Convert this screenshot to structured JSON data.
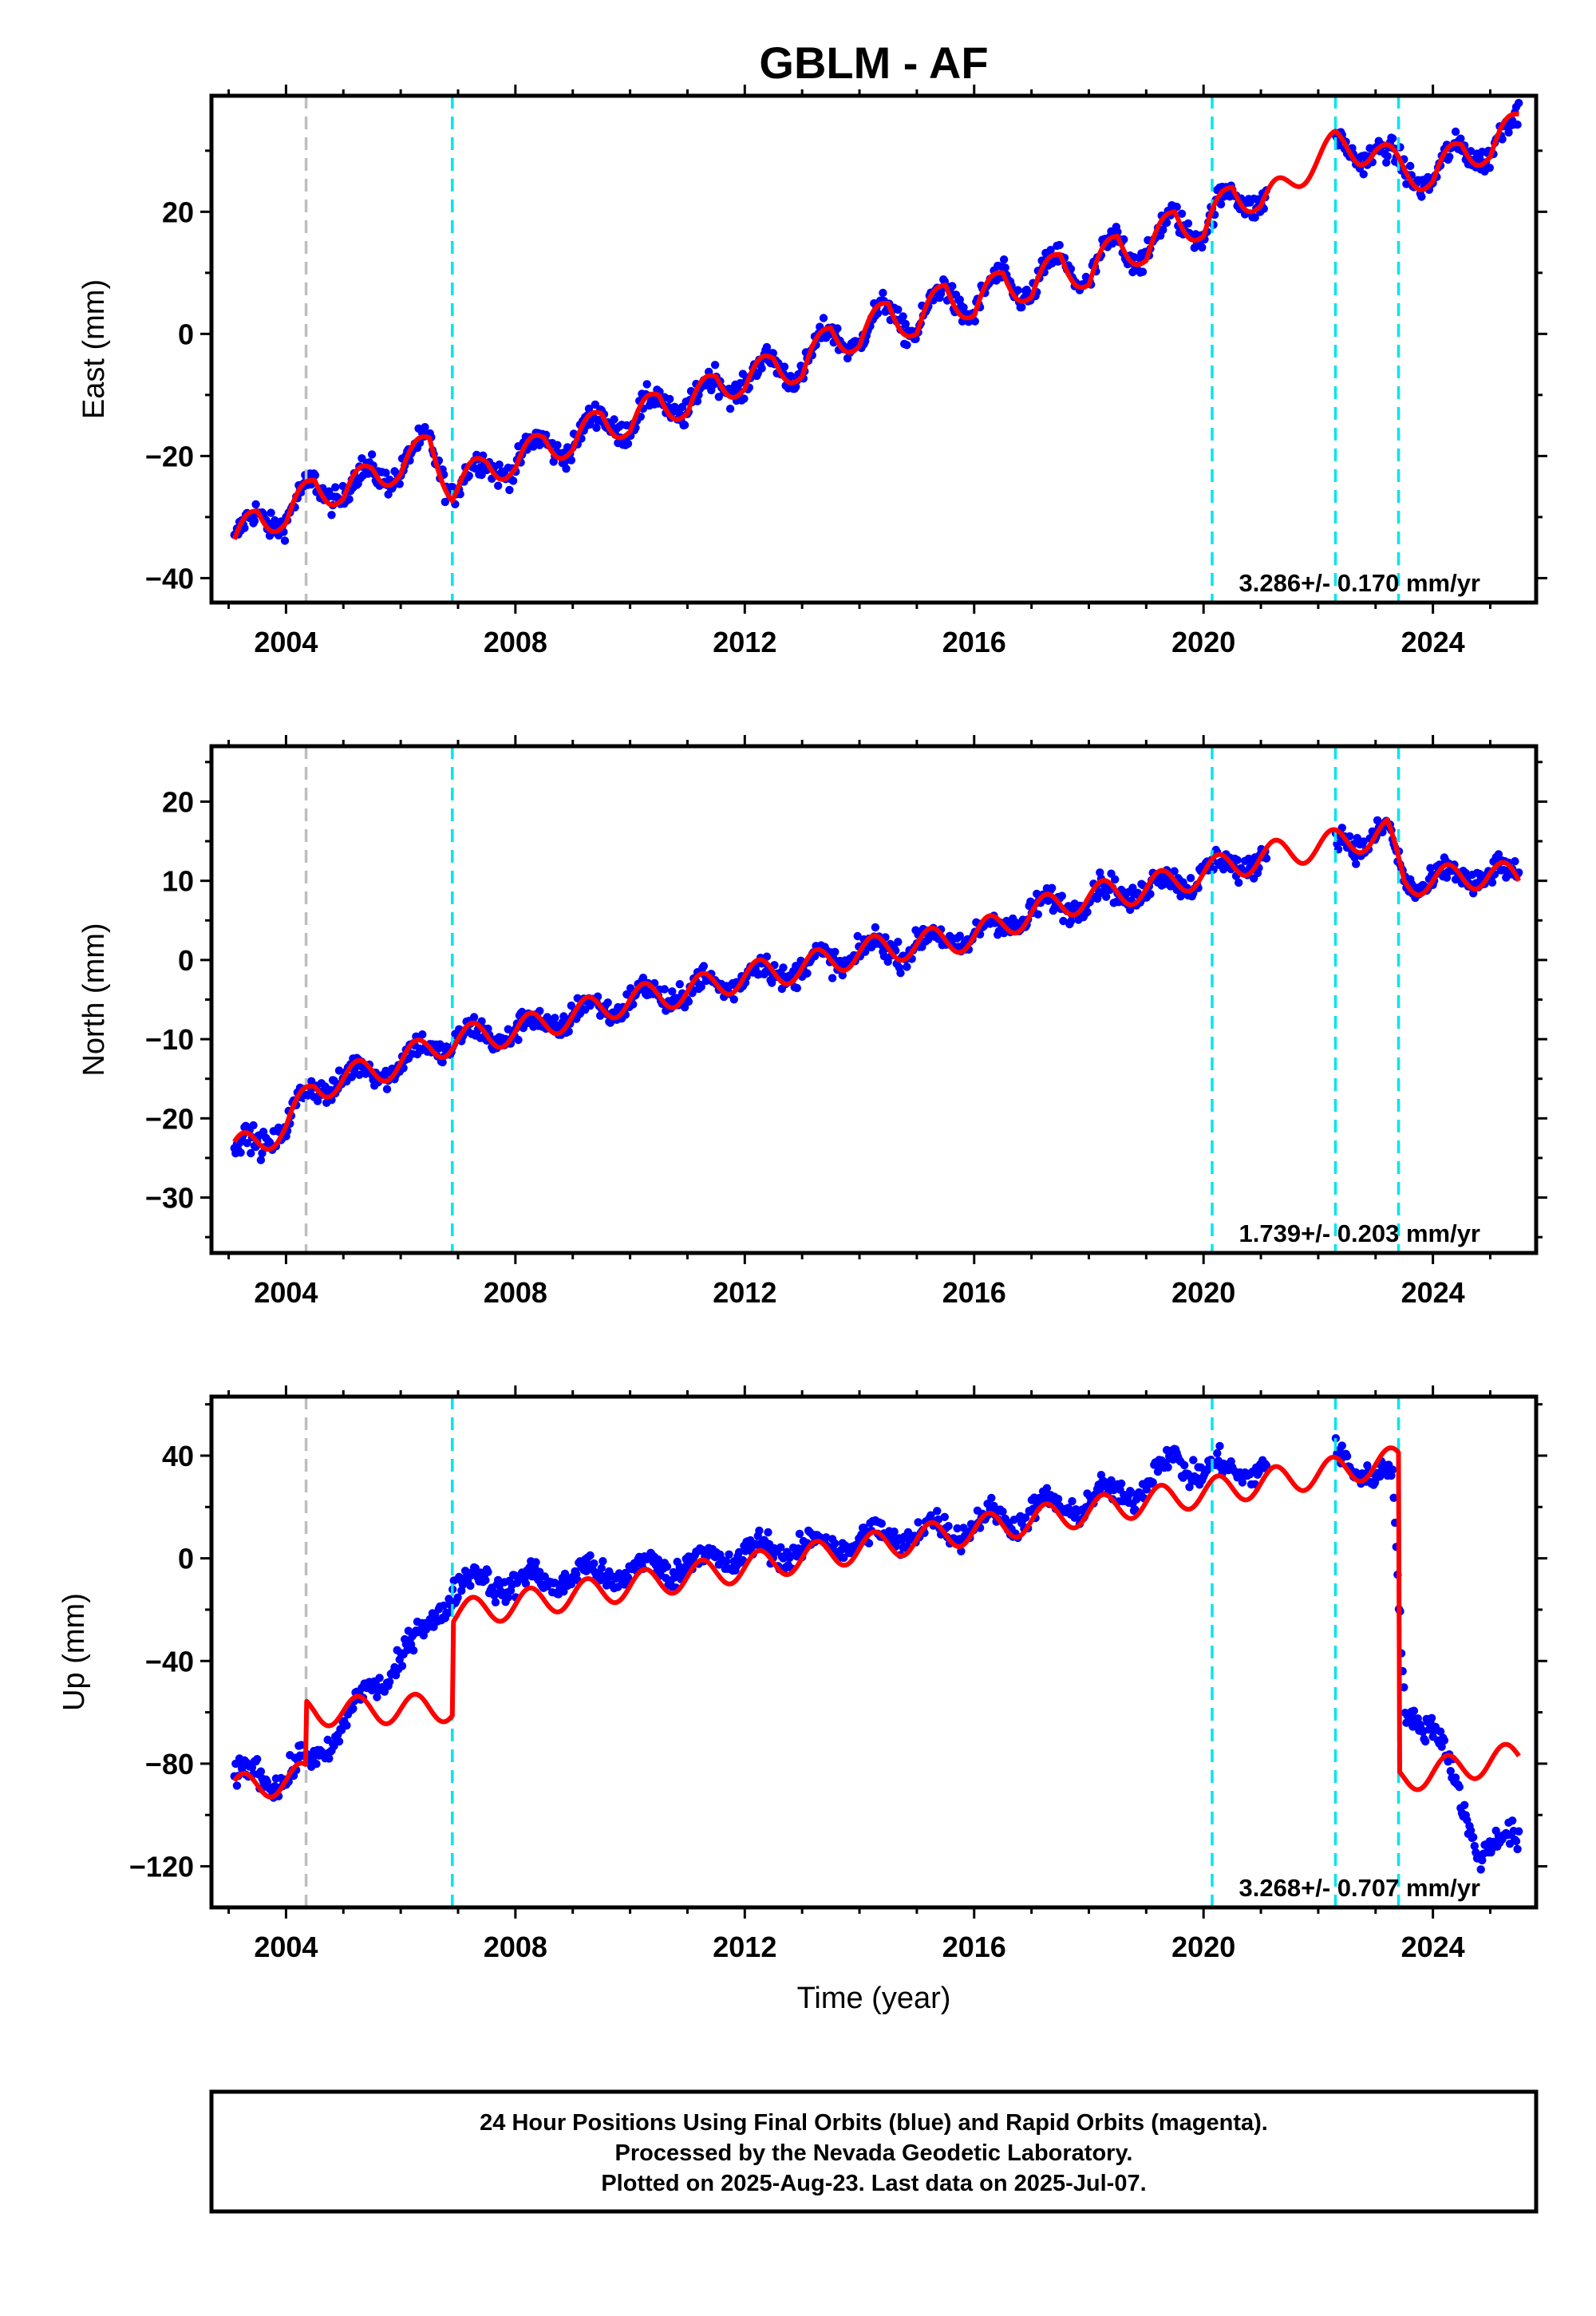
{
  "title": "GBLM - AF",
  "x_axis_label": "Time (year)",
  "x_ticks": [
    2004,
    2008,
    2012,
    2016,
    2020,
    2024
  ],
  "footer": {
    "line1": "24 Hour Positions Using Final Orbits (blue) and Rapid Orbits (magenta).",
    "line2": "Processed by the Nevada Geodetic Laboratory.",
    "line3": "Plotted on 2025-Aug-23. Last data on 2025-Jul-07."
  },
  "colors": {
    "data_points": "#0000ff",
    "model_fit": "#ff0000",
    "equipment_change_lines": "#00e5ee",
    "other_event_line": "#bebebe",
    "frame": "#000000"
  },
  "chart_data": [
    {
      "type": "scatter",
      "component": "East",
      "ylabel": "East (mm)",
      "xlim": [
        2002.7,
        2025.8
      ],
      "ylim": [
        -44,
        39
      ],
      "y_ticks": [
        -40,
        -20,
        0,
        20
      ],
      "rate_label": "3.286+/- 0.170 mm/yr",
      "vertical_lines": [
        {
          "x": 2004.35,
          "color": "gray"
        },
        {
          "x": 2006.9,
          "color": "cyan"
        },
        {
          "x": 2020.15,
          "color": "cyan"
        },
        {
          "x": 2022.3,
          "color": "cyan"
        },
        {
          "x": 2023.4,
          "color": "cyan"
        }
      ],
      "series": [
        {
          "values_kind": "daily_positions",
          "x": [
            2003.1,
            2003.5,
            2004.0,
            2004.5,
            2005.0,
            2005.5,
            2006.0,
            2006.5,
            2006.9,
            2007.5,
            2008.0,
            2008.5,
            2009.0,
            2009.5,
            2010.0,
            2010.5,
            2011.0,
            2011.5,
            2012.0,
            2012.5,
            2013.0,
            2013.5,
            2014.0,
            2014.5,
            2015.0,
            2015.5,
            2016.0,
            2016.5,
            2017.0,
            2017.5,
            2018.0,
            2018.5,
            2019.0,
            2019.5,
            2020.0,
            2020.5,
            2021.0,
            2022.3,
            2022.7,
            2023.0,
            2023.5,
            2024.0,
            2024.5,
            2025.0,
            2025.5
          ],
          "y": [
            -35,
            -29,
            -31,
            -24,
            -27,
            -22,
            -23,
            -17,
            -26,
            -21,
            -22,
            -17,
            -19,
            -13,
            -16,
            -10,
            -13,
            -7,
            -9,
            -4,
            -7,
            1,
            -2,
            5,
            0,
            8,
            3,
            10,
            6,
            13,
            8,
            16,
            12,
            20,
            16,
            24,
            21,
            31,
            30,
            30,
            27,
            25,
            31,
            29,
            36
          ]
        },
        {
          "values_kind": "model_fit"
        }
      ]
    },
    {
      "type": "scatter",
      "component": "North",
      "ylabel": "North (mm)",
      "xlim": [
        2002.7,
        2025.8
      ],
      "ylim": [
        -37,
        27
      ],
      "y_ticks": [
        -30,
        -20,
        -10,
        0,
        10,
        20
      ],
      "rate_label": "1.739+/- 0.203 mm/yr",
      "vertical_lines": [
        {
          "x": 2004.35,
          "color": "gray"
        },
        {
          "x": 2006.9,
          "color": "cyan"
        },
        {
          "x": 2020.15,
          "color": "cyan"
        },
        {
          "x": 2022.3,
          "color": "cyan"
        },
        {
          "x": 2023.4,
          "color": "cyan"
        }
      ],
      "series": [
        {
          "values_kind": "daily_positions",
          "x": [
            2003.1,
            2003.5,
            2004.0,
            2004.5,
            2005.0,
            2005.5,
            2006.0,
            2006.5,
            2007.0,
            2008.0,
            2009.0,
            2010.0,
            2011.0,
            2012.0,
            2013.0,
            2014.0,
            2015.0,
            2016.0,
            2017.0,
            2018.0,
            2019.0,
            2020.0,
            2021.0,
            2022.5,
            2023.2,
            2023.5,
            2024.0,
            2025.0,
            2025.5
          ],
          "y": [
            -24,
            -23,
            -21,
            -16,
            -15,
            -14,
            -13,
            -11,
            -10,
            -9,
            -7,
            -5,
            -4,
            -2,
            -1,
            1,
            2,
            3,
            6,
            8,
            9,
            11,
            13,
            15,
            16,
            10,
            10,
            11,
            10
          ]
        },
        {
          "values_kind": "model_fit"
        }
      ]
    },
    {
      "type": "scatter",
      "component": "Up",
      "ylabel": "Up (mm)",
      "xlim": [
        2002.7,
        2025.8
      ],
      "ylim": [
        -136,
        63
      ],
      "y_ticks": [
        -120,
        -80,
        -40,
        0,
        40
      ],
      "rate_label": "3.268+/- 0.707 mm/yr",
      "vertical_lines": [
        {
          "x": 2004.35,
          "color": "gray"
        },
        {
          "x": 2006.9,
          "color": "cyan"
        },
        {
          "x": 2020.15,
          "color": "cyan"
        },
        {
          "x": 2022.3,
          "color": "cyan"
        },
        {
          "x": 2023.4,
          "color": "cyan"
        }
      ],
      "series": [
        {
          "values_kind": "daily_positions",
          "x": [
            2003.1,
            2003.5,
            2004.0,
            2004.3,
            2004.5,
            2005.0,
            2005.5,
            2006.0,
            2006.5,
            2006.9,
            2007.5,
            2008.0,
            2009.0,
            2010.0,
            2011.0,
            2012.0,
            2013.0,
            2014.0,
            2015.0,
            2016.0,
            2017.0,
            2018.0,
            2019.0,
            2019.5,
            2020.0,
            2021.0,
            2022.5,
            2023.3,
            2023.5,
            2024.0,
            2024.8,
            2025.5
          ],
          "y": [
            -88,
            -82,
            -87,
            -80,
            -78,
            -65,
            -50,
            -40,
            -25,
            -12,
            -8,
            -10,
            -7,
            -5,
            -2,
            2,
            4,
            7,
            10,
            13,
            18,
            22,
            28,
            40,
            33,
            36,
            38,
            30,
            -58,
            -65,
            -113,
            -110
          ]
        },
        {
          "values_kind": "model_fit",
          "x": [
            2003.1,
            2004.35,
            2004.36,
            2006.9,
            2006.91,
            2023.4,
            2023.41,
            2025.5
          ],
          "y": [
            -90,
            -85,
            -60,
            -58,
            -22,
            38,
            -86,
            -77
          ]
        }
      ]
    }
  ]
}
